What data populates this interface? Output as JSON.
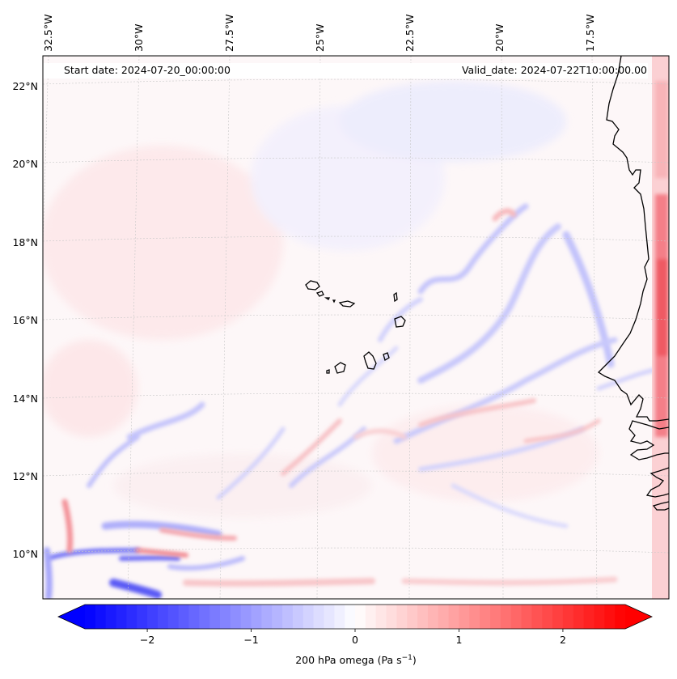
{
  "header": {
    "start_date": "Start date: 2024-07-20_00:00:00",
    "valid_date": "Valid_date: 2024-07-22T10:00:00.00"
  },
  "map": {
    "lon_labels": [
      "32.5°W",
      "30°W",
      "27.5°W",
      "25°W",
      "22.5°W",
      "20°W",
      "17.5°W"
    ],
    "lat_labels": [
      "22°N",
      "20°N",
      "18°N",
      "16°N",
      "14°N",
      "12°N",
      "10°N"
    ],
    "features": [
      "Cabo Verde islands",
      "West African coastline"
    ]
  },
  "colorbar": {
    "label": "200 hPa omega (Pa s",
    "label_sup": "−1",
    "label_close": ")",
    "ticks": [
      "−2",
      "−1",
      "0",
      "1",
      "2"
    ],
    "tick_values": [
      -2,
      -1,
      0,
      1,
      2
    ],
    "vmin": -2.6,
    "vmax": 2.6,
    "colors": {
      "min": "#0000ff",
      "mid": "#ffffff",
      "max": "#ff0000"
    }
  }
}
